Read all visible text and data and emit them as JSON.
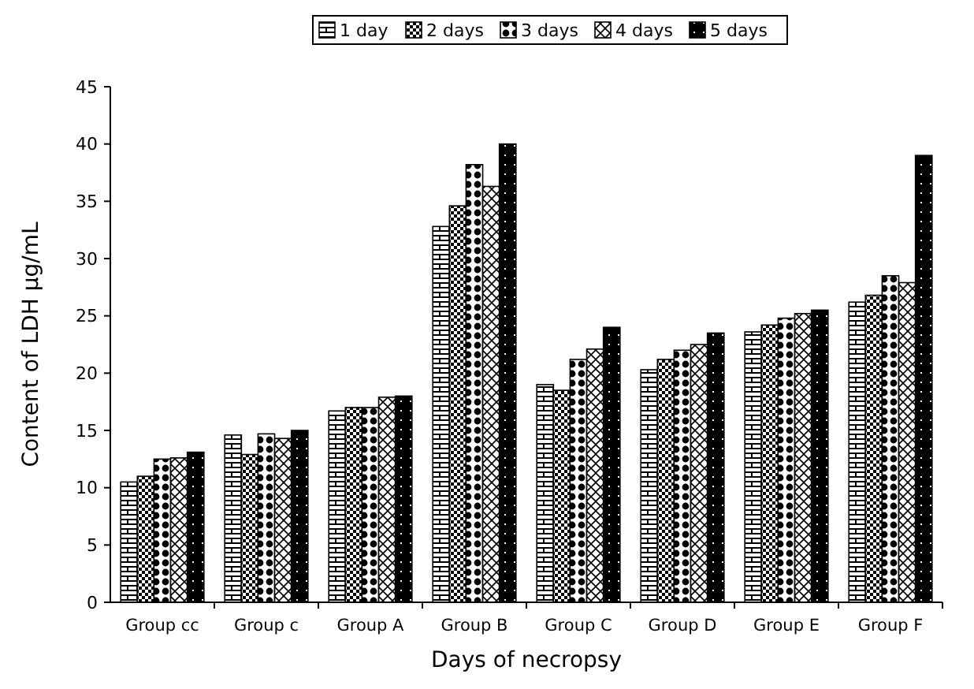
{
  "chart_data": {
    "type": "bar",
    "xlabel": "Days of necropsy",
    "ylabel": "Content of LDH μg/mL",
    "categories": [
      "Group cc",
      "Group c",
      "Group A",
      "Group B",
      "Group C",
      "Group D",
      "Group E",
      "Group F"
    ],
    "series": [
      {
        "name": "1 day",
        "color": "#000000",
        "values": [
          10.5,
          14.6,
          16.7,
          32.8,
          19,
          20.3,
          23.6,
          26.2
        ]
      },
      {
        "name": "2 days",
        "color": "#000000",
        "values": [
          11,
          12.9,
          17,
          34.6,
          18.5,
          21.2,
          24.2,
          26.8
        ]
      },
      {
        "name": "3 days",
        "color": "#000000",
        "values": [
          12.5,
          14.7,
          17,
          38.2,
          21.2,
          22,
          24.8,
          28.5
        ]
      },
      {
        "name": "4 days",
        "color": "#000000",
        "values": [
          12.6,
          14.3,
          17.9,
          36.3,
          22.1,
          22.5,
          25.2,
          27.9
        ]
      },
      {
        "name": "5 days",
        "color": "#000000",
        "values": [
          13.1,
          15,
          18,
          40,
          24,
          23.5,
          25.5,
          39
        ]
      }
    ],
    "ylim": [
      0,
      45
    ],
    "yticks": [
      0,
      5,
      10,
      15,
      20,
      25,
      30,
      35,
      40,
      45
    ],
    "grid": false,
    "legend": "top"
  }
}
